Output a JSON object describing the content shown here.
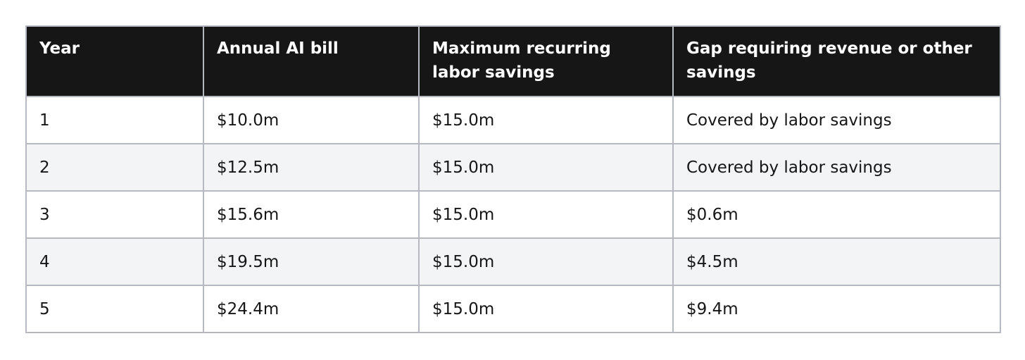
{
  "table": {
    "headers": [
      "Year",
      "Annual AI bill",
      "Maximum recurring labor savings",
      "Gap requiring revenue or other savings"
    ],
    "rows": [
      [
        "1",
        "$10.0m",
        "$15.0m",
        "Covered by labor savings"
      ],
      [
        "2",
        "$12.5m",
        "$15.0m",
        "Covered by labor savings"
      ],
      [
        "3",
        "$15.6m",
        "$15.0m",
        "$0.6m"
      ],
      [
        "4",
        "$19.5m",
        "$15.0m",
        "$4.5m"
      ],
      [
        "5",
        "$24.4m",
        "$15.0m",
        "$9.4m"
      ]
    ]
  }
}
